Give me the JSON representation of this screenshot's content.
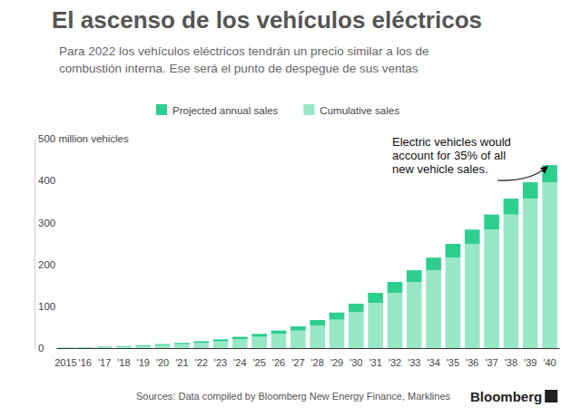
{
  "chart_data": {
    "type": "bar",
    "title": "El ascenso de los vehículos eléctricos",
    "subtitle": [
      "Para 2022 los vehículos eléctricos tendrán un precio similar a los de",
      "combustión interna. Ese será el punto de despegue de sus ventas"
    ],
    "categories": [
      "2015",
      "'16",
      "'17",
      "'18",
      "'19",
      "'20",
      "'21",
      "'22",
      "'23",
      "'24",
      "'25",
      "'26",
      "'27",
      "'28",
      "'29",
      "'30",
      "'31",
      "'32",
      "'33",
      "'34",
      "'35",
      "'36",
      "'37",
      "'38",
      "'39",
      "'40"
    ],
    "series": [
      {
        "name": "Projected annual sales",
        "color": "#2dcf8f",
        "values": [
          0.5,
          0.7,
          1,
          1.5,
          2,
          2.5,
          3,
          4,
          5,
          6,
          7,
          8,
          10,
          13,
          17,
          20,
          24,
          26,
          28,
          30,
          33,
          34,
          36,
          38,
          39,
          41
        ]
      },
      {
        "name": "Cumulative sales",
        "color": "#98e8c8",
        "values": [
          1,
          1.5,
          2.5,
          3.5,
          5,
          7,
          9.5,
          12.5,
          16,
          21,
          27,
          34,
          42,
          54,
          68,
          86,
          108,
          132,
          158,
          186,
          216,
          249,
          283,
          319,
          357,
          396
        ]
      }
    ],
    "stacked": true,
    "legend": "top",
    "grid": false,
    "ylim": [
      0,
      500
    ],
    "yticks": [
      0,
      100,
      200,
      300,
      400,
      {
        "value": 500,
        "label": "500 million vehicles"
      }
    ],
    "annotation": [
      "Electric vehicles would",
      "account for 35% of all",
      "new vehicle sales."
    ],
    "source": "Sources: Data compiled by Bloomberg New Energy Finance, Marklines",
    "brand": "Bloomberg"
  }
}
